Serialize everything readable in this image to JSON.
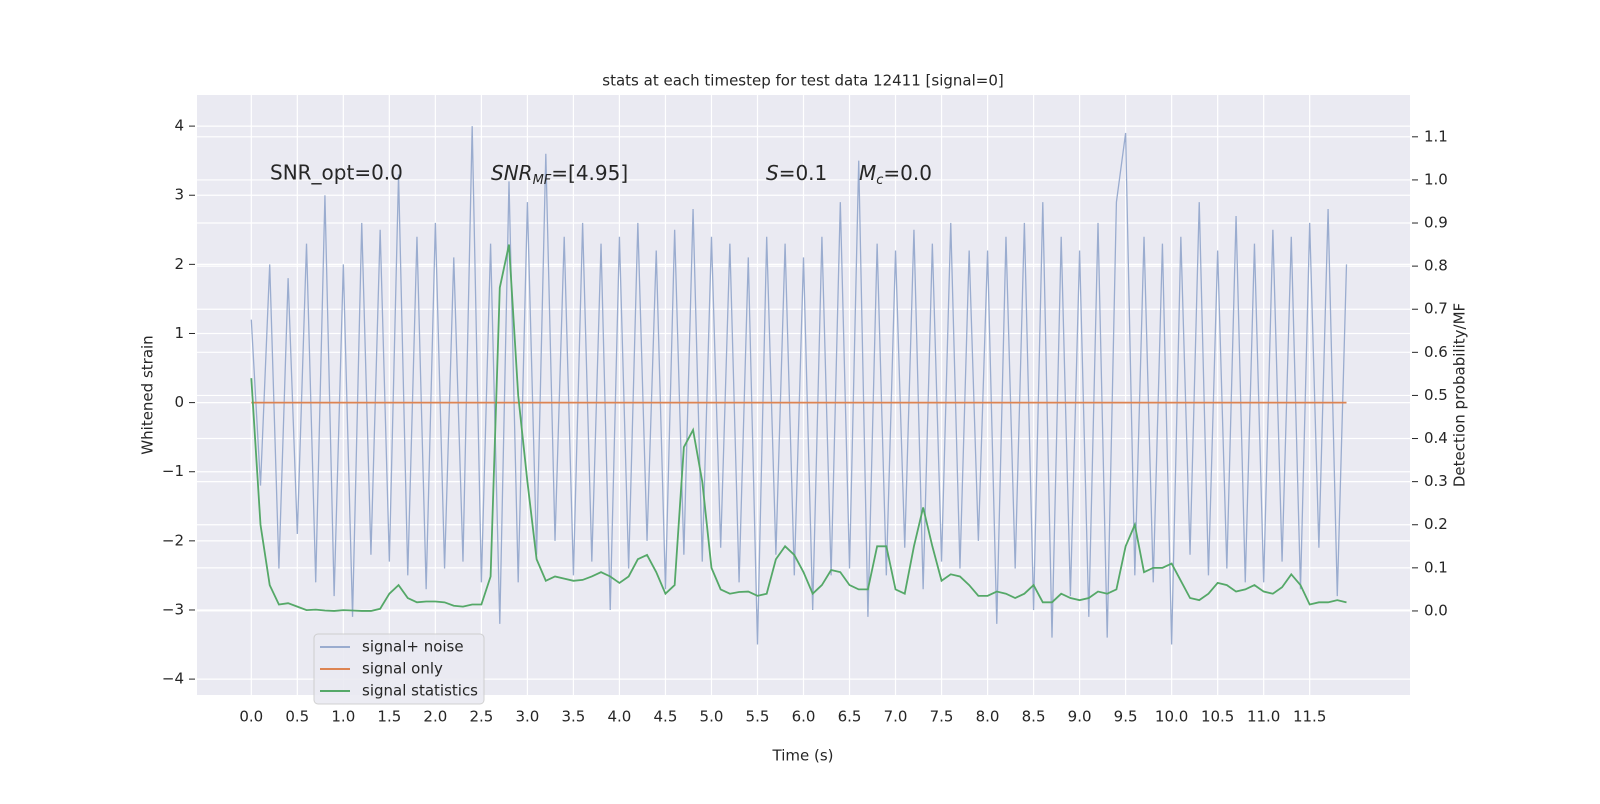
{
  "chart_data": {
    "type": "line",
    "title": "stats at each timestep for test data 12411 [signal=0]",
    "xlabel": "Time (s)",
    "ylabel": "Whitened strain",
    "y2label": "Detection probability/MF",
    "xlim": [
      -0.59,
      12.59
    ],
    "ylim": [
      -4.23,
      4.45
    ],
    "y2lim": [
      -0.195,
      1.197
    ],
    "xticks": [
      {
        "value": 0,
        "label": "0.0"
      },
      0.5,
      {
        "value": 1,
        "label": "1.0"
      },
      1.5,
      {
        "value": 2,
        "label": "2.0"
      },
      2.5,
      {
        "value": 3,
        "label": "3.0"
      },
      3.5,
      {
        "value": 4,
        "label": "4.0"
      },
      4.5,
      {
        "value": 5,
        "label": "5.0"
      },
      5.5,
      {
        "value": 6,
        "label": "6.0"
      },
      6.5,
      {
        "value": 7,
        "label": "7.0"
      },
      7.5,
      {
        "value": 8,
        "label": "8.0"
      },
      8.5,
      {
        "value": 9,
        "label": "9.0"
      },
      9.5,
      {
        "value": 10,
        "label": "10.0"
      },
      10.5,
      {
        "value": 11,
        "label": "11.0"
      },
      11.5
    ],
    "yticks": [
      {
        "value": -4,
        "label": "−4"
      },
      {
        "value": -3,
        "label": "−3"
      },
      {
        "value": -2,
        "label": "−2"
      },
      {
        "value": -1,
        "label": "−1"
      },
      0,
      1,
      2,
      3,
      4
    ],
    "y2ticks": [
      {
        "value": 0,
        "label": "0.0"
      },
      0.1,
      0.2,
      0.3,
      0.4,
      0.5,
      0.6,
      0.7,
      0.8,
      0.9,
      {
        "value": 1,
        "label": "1.0"
      },
      1.1
    ],
    "grid": true,
    "legend": "lower left",
    "annotations": [
      {
        "text": "SNR_opt=0.0"
      },
      {
        "symbol": "SNR",
        "sub": "MF",
        "text": "=[4.95]"
      },
      {
        "symbol": "S",
        "text": "=0.1"
      },
      {
        "symbol": "M",
        "sub": "c",
        "text": "=0.0"
      }
    ],
    "x": [
      0.0,
      0.1,
      0.2,
      0.3,
      0.4,
      0.5,
      0.6,
      0.7,
      0.8,
      0.9,
      1.0,
      1.1,
      1.2,
      1.3,
      1.4,
      1.5,
      1.6,
      1.7,
      1.8,
      1.9,
      2.0,
      2.1,
      2.2,
      2.3,
      2.4,
      2.5,
      2.6,
      2.7,
      2.8,
      2.9,
      3.0,
      3.1,
      3.2,
      3.3,
      3.4,
      3.5,
      3.6,
      3.7,
      3.8,
      3.9,
      4.0,
      4.1,
      4.2,
      4.3,
      4.4,
      4.5,
      4.6,
      4.7,
      4.8,
      4.9,
      5.0,
      5.1,
      5.2,
      5.3,
      5.4,
      5.5,
      5.6,
      5.7,
      5.8,
      5.9,
      6.0,
      6.1,
      6.2,
      6.3,
      6.4,
      6.5,
      6.6,
      6.7,
      6.8,
      6.9,
      7.0,
      7.1,
      7.2,
      7.3,
      7.4,
      7.5,
      7.6,
      7.7,
      7.8,
      7.9,
      8.0,
      8.1,
      8.2,
      8.3,
      8.4,
      8.5,
      8.6,
      8.7,
      8.8,
      8.9,
      9.0,
      9.1,
      9.2,
      9.3,
      9.4,
      9.5,
      9.6,
      9.7,
      9.8,
      9.9,
      10.0,
      10.1,
      10.2,
      10.3,
      10.4,
      10.5,
      10.6,
      10.7,
      10.8,
      10.9,
      11.0,
      11.1,
      11.2,
      11.3,
      11.4,
      11.5,
      11.6,
      11.7,
      11.8,
      11.9
    ],
    "series": [
      {
        "name": "signal+ noise",
        "color": "#9aaccf",
        "values": [
          1.2,
          -1.2,
          2.0,
          -2.4,
          1.8,
          -1.9,
          2.3,
          -2.6,
          3.0,
          -2.8,
          2.0,
          -3.1,
          2.6,
          -2.2,
          2.5,
          -2.3,
          3.3,
          -2.5,
          2.4,
          -2.7,
          2.6,
          -2.4,
          2.1,
          -2.3,
          4.0,
          -2.6,
          2.3,
          -3.2,
          3.2,
          -2.6,
          2.9,
          -2.2,
          3.6,
          -2.0,
          2.4,
          -2.5,
          2.6,
          -2.3,
          2.3,
          -3.0,
          2.4,
          -2.4,
          2.6,
          -2.0,
          2.2,
          -2.7,
          2.5,
          -2.2,
          2.8,
          -2.3,
          2.4,
          -2.1,
          2.3,
          -2.6,
          2.1,
          -3.5,
          2.4,
          -2.2,
          2.3,
          -2.5,
          2.1,
          -3.0,
          2.4,
          -2.5,
          2.9,
          -2.4,
          3.5,
          -3.1,
          2.3,
          -2.5,
          2.2,
          -2.1,
          2.5,
          -2.7,
          2.3,
          -2.3,
          2.6,
          -2.4,
          2.2,
          -2.0,
          2.2,
          -3.2,
          2.4,
          -2.4,
          2.6,
          -3.0,
          2.9,
          -3.4,
          2.4,
          -2.8,
          2.2,
          -3.1,
          2.6,
          -3.4,
          2.9,
          3.9,
          -2.5,
          2.4,
          -2.6,
          2.3,
          -3.5,
          2.4,
          -2.2,
          2.9,
          -2.5,
          2.2,
          -2.4,
          2.7,
          -2.6,
          2.3,
          -2.6,
          2.5,
          -2.3,
          2.4,
          -2.7,
          2.6,
          -2.1,
          2.8,
          -2.8,
          2.0
        ]
      },
      {
        "name": "signal only",
        "color": "#dd8452",
        "values": [
          0,
          0,
          0,
          0,
          0,
          0,
          0,
          0,
          0,
          0,
          0,
          0,
          0,
          0,
          0,
          0,
          0,
          0,
          0,
          0,
          0,
          0,
          0,
          0,
          0,
          0,
          0,
          0,
          0,
          0,
          0,
          0,
          0,
          0,
          0,
          0,
          0,
          0,
          0,
          0,
          0,
          0,
          0,
          0,
          0,
          0,
          0,
          0,
          0,
          0,
          0,
          0,
          0,
          0,
          0,
          0,
          0,
          0,
          0,
          0,
          0,
          0,
          0,
          0,
          0,
          0,
          0,
          0,
          0,
          0,
          0,
          0,
          0,
          0,
          0,
          0,
          0,
          0,
          0,
          0,
          0,
          0,
          0,
          0,
          0,
          0,
          0,
          0,
          0,
          0,
          0,
          0,
          0,
          0,
          0,
          0,
          0,
          0,
          0,
          0,
          0,
          0,
          0,
          0,
          0,
          0,
          0,
          0,
          0,
          0,
          0,
          0,
          0,
          0,
          0,
          0,
          0,
          0,
          0,
          0
        ]
      },
      {
        "name": "signal statistics",
        "color": "#55a868",
        "axis": "y2",
        "values": [
          0.54,
          0.2,
          0.06,
          0.015,
          0.018,
          0.01,
          0.002,
          0.003,
          0.001,
          0.0,
          0.002,
          0.001,
          0.0,
          0.0,
          0.005,
          0.04,
          0.06,
          0.03,
          0.02,
          0.022,
          0.022,
          0.02,
          0.012,
          0.01,
          0.015,
          0.015,
          0.08,
          0.75,
          0.85,
          0.5,
          0.3,
          0.12,
          0.07,
          0.08,
          0.075,
          0.07,
          0.072,
          0.08,
          0.09,
          0.08,
          0.065,
          0.08,
          0.12,
          0.13,
          0.09,
          0.04,
          0.06,
          0.38,
          0.42,
          0.3,
          0.1,
          0.05,
          0.04,
          0.044,
          0.045,
          0.035,
          0.04,
          0.12,
          0.15,
          0.13,
          0.09,
          0.04,
          0.06,
          0.095,
          0.09,
          0.06,
          0.05,
          0.05,
          0.15,
          0.15,
          0.05,
          0.04,
          0.15,
          0.24,
          0.15,
          0.07,
          0.085,
          0.08,
          0.06,
          0.035,
          0.035,
          0.045,
          0.04,
          0.03,
          0.04,
          0.06,
          0.02,
          0.02,
          0.04,
          0.03,
          0.025,
          0.03,
          0.045,
          0.04,
          0.05,
          0.15,
          0.2,
          0.09,
          0.1,
          0.1,
          0.11,
          0.07,
          0.03,
          0.025,
          0.04,
          0.065,
          0.06,
          0.045,
          0.05,
          0.06,
          0.045,
          0.04,
          0.055,
          0.085,
          0.06,
          0.015,
          0.02,
          0.02,
          0.025,
          0.02
        ]
      }
    ]
  }
}
